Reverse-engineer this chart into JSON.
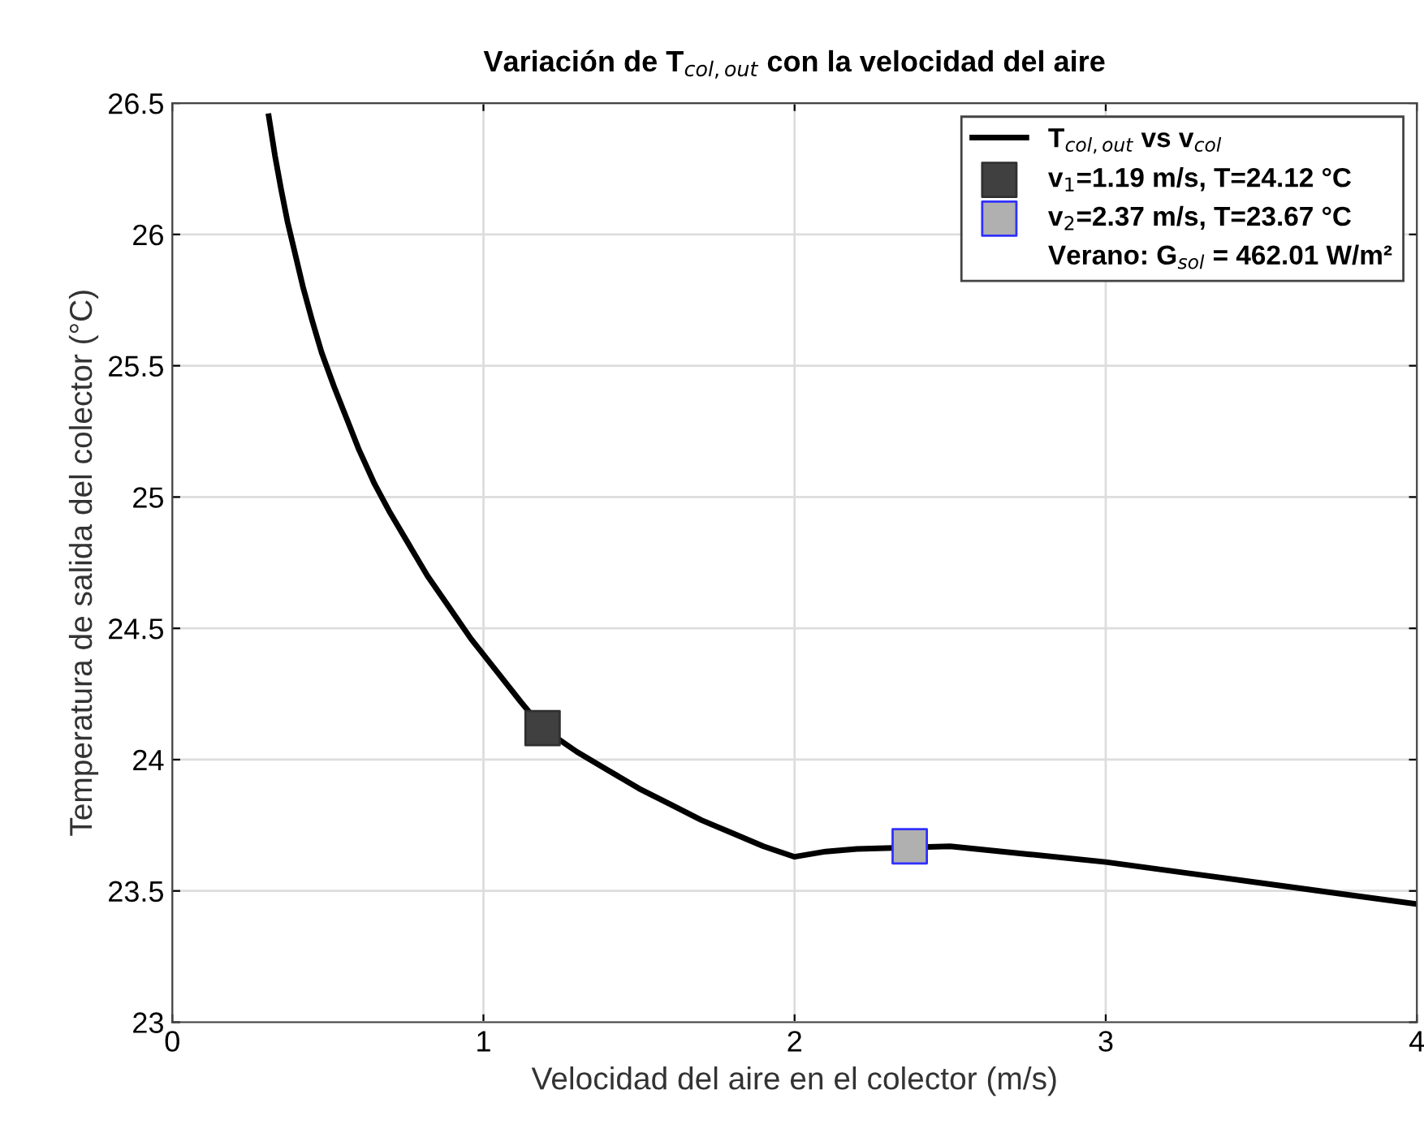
{
  "chart_data": {
    "type": "line",
    "title": "Variación de T$_{col,out}$ con la velocidad del aire",
    "xlabel": "Velocidad del aire en el colector (m/s)",
    "ylabel": "Temperatura de salida del colector (°C)",
    "series": [
      {
        "name": "T$_{col,out}$ vs v$_{col}$",
        "color": "#000000",
        "x": [
          0.31,
          0.33,
          0.35,
          0.37,
          0.39,
          0.42,
          0.45,
          0.48,
          0.52,
          0.56,
          0.6,
          0.65,
          0.7,
          0.76,
          0.82,
          0.89,
          0.96,
          1.04,
          1.12,
          1.19,
          1.3,
          1.4,
          1.5,
          1.6,
          1.7,
          1.8,
          1.9,
          2.0,
          2.1,
          2.2,
          2.5,
          2.75,
          3.0,
          3.25,
          3.5,
          3.75,
          4.0
        ],
        "values": [
          26.45,
          26.3,
          26.17,
          26.05,
          25.95,
          25.8,
          25.67,
          25.55,
          25.42,
          25.3,
          25.18,
          25.05,
          24.94,
          24.82,
          24.7,
          24.58,
          24.46,
          24.34,
          24.22,
          24.12,
          24.03,
          23.96,
          23.89,
          23.83,
          23.77,
          23.72,
          23.67,
          23.63,
          23.65,
          23.66,
          23.67,
          23.64,
          23.61,
          23.57,
          23.53,
          23.49,
          23.45
        ]
      },
      {
        "name": "v$_{1}$=1.19 m/s, T=24.12 °C",
        "type": "scatter",
        "marker": "square",
        "color": "#404040",
        "x": [
          1.19
        ],
        "values": [
          24.12
        ]
      },
      {
        "name": "v$_{2}$=2.37 m/s, T=23.67 °C",
        "type": "scatter",
        "marker": "square",
        "color": "#b0b0b0",
        "x": [
          2.37
        ],
        "values": [
          23.67
        ]
      }
    ],
    "annotations": [
      "Verano: G$_{sol}$ = 462.01 W/m²"
    ],
    "xlim": [
      0,
      4
    ],
    "ylim": [
      23,
      26.5
    ],
    "xticks": [
      0,
      1,
      2,
      3,
      4
    ],
    "yticks": [
      23,
      23.5,
      24,
      24.5,
      25,
      25.5,
      26,
      26.5
    ],
    "grid": true,
    "legend": "top right"
  }
}
